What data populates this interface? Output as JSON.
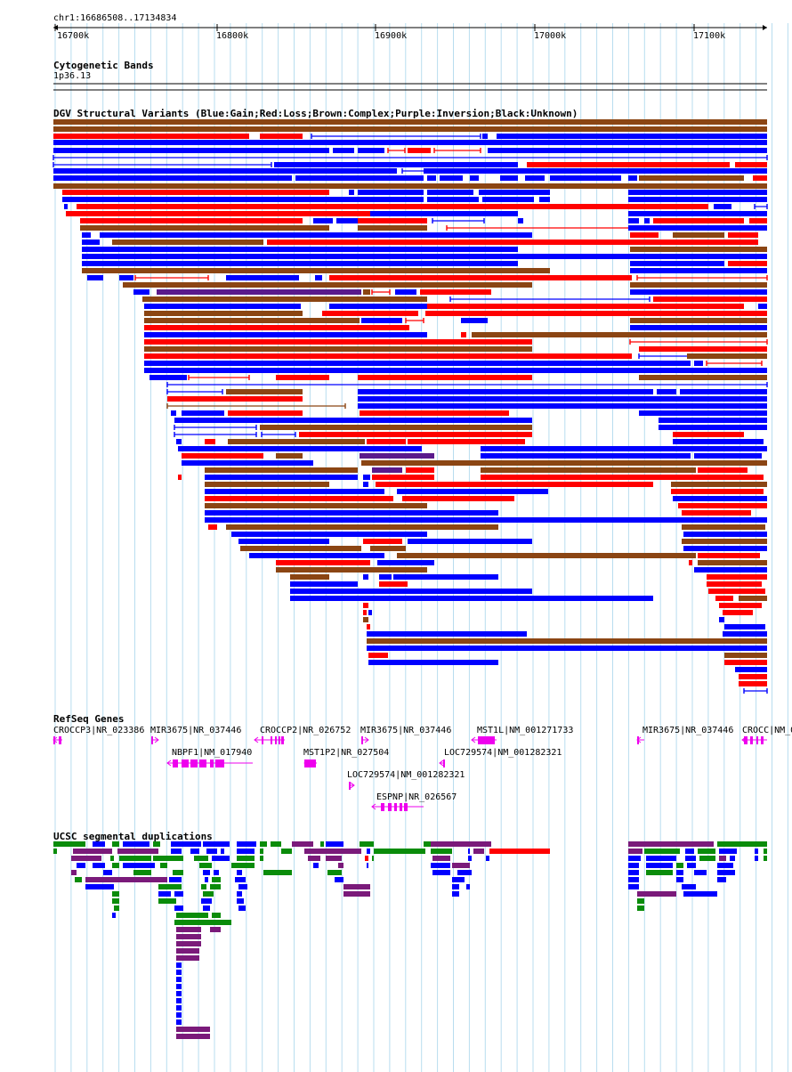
{
  "ruler": {
    "coord_label": "chr1:16686508..17134834",
    "ticks": [
      "16700k",
      "16800k",
      "16900k",
      "17000k",
      "17100k"
    ]
  },
  "cytoband": {
    "title": "Cytogenetic Bands",
    "band": "1p36.13"
  },
  "dgv": {
    "title": "DGV Structural Variants (Blue:Gain;Red:Loss;Brown:Complex;Purple:Inversion;Black:Unknown)",
    "colors": {
      "gain": "#0000ff",
      "loss": "#ff0000",
      "complex": "#8b4513",
      "inversion": "#5a1a8c"
    }
  },
  "refseq": {
    "title": "RefSeq Genes",
    "color": "#ee00ee",
    "genes": [
      "CROCCP3|NR_023386",
      "MIR3675|NR_037446",
      "CROCCP2|NR_026752",
      "MIR3675|NR_037446",
      "MST1L|NM_001271733",
      "MIR3675|NR_037446",
      "CROCC|NM_0",
      "NBPF1|NM_017940",
      "MST1P2|NR_027504",
      "LOC729574|NM_001282321",
      "LOC729574|NM_001282321",
      "ESPNP|NR_026567"
    ]
  },
  "segdup": {
    "title": "UCSC segmental duplications",
    "colors": {
      "green": "#0a8c0a",
      "blue": "#0000ff",
      "purple": "#7a1a7a",
      "red": "#ff0000"
    }
  }
}
